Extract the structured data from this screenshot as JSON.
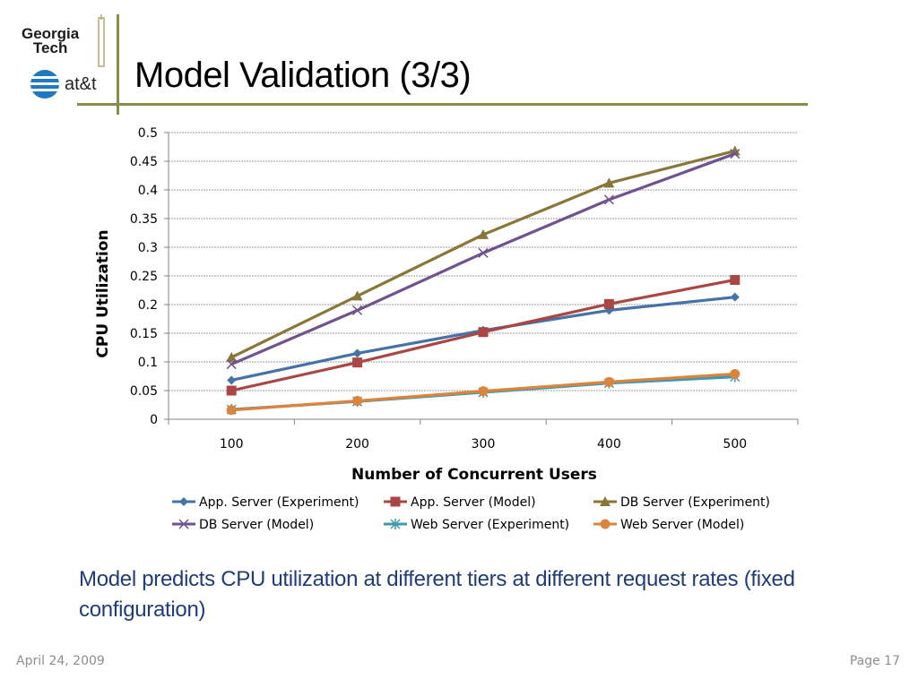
{
  "header": {
    "title": "Model Validation (3/3)",
    "logo_gt": "Georgia Tech",
    "logo_gt_line1": "Georgia",
    "logo_gt_line2": "Tech",
    "logo_att": "at&t"
  },
  "caption": "Model predicts CPU utilization at different tiers at different request rates (fixed configuration)",
  "footer": {
    "date": "April 24, 2009",
    "page": "Page 17"
  },
  "colors": {
    "rule": "#8a8a4a",
    "caption": "#1f3d7a"
  },
  "chart_data": {
    "type": "line",
    "xlabel": "Number of Concurrent Users",
    "ylabel": "CPU  Utilization",
    "categories": [
      "100",
      "200",
      "300",
      "400",
      "500"
    ],
    "ylim": [
      0,
      0.5
    ],
    "yticks": [
      "0",
      "0.05",
      "0.1",
      "0.15",
      "0.2",
      "0.25",
      "0.3",
      "0.35",
      "0.4",
      "0.45",
      "0.5"
    ],
    "grid": true,
    "legend_position": "bottom",
    "series": [
      {
        "name": "App. Server (Experiment)",
        "color": "#4572a7",
        "marker": "diamond",
        "values": [
          0.068,
          0.115,
          0.155,
          0.19,
          0.213
        ]
      },
      {
        "name": "App. Server (Model)",
        "color": "#aa4643",
        "marker": "square",
        "values": [
          0.05,
          0.099,
          0.152,
          0.201,
          0.243
        ]
      },
      {
        "name": "DB Server (Experiment)",
        "color": "#89773a",
        "marker": "triangle",
        "values": [
          0.108,
          0.215,
          0.322,
          0.412,
          0.468
        ]
      },
      {
        "name": "DB Server (Model)",
        "color": "#70528f",
        "marker": "x",
        "values": [
          0.096,
          0.19,
          0.29,
          0.383,
          0.463
        ]
      },
      {
        "name": "Web Server (Experiment)",
        "color": "#4198af",
        "marker": "star",
        "values": [
          0.017,
          0.031,
          0.047,
          0.063,
          0.074
        ]
      },
      {
        "name": "Web Server (Model)",
        "color": "#db843d",
        "marker": "circle",
        "values": [
          0.016,
          0.032,
          0.049,
          0.065,
          0.079
        ]
      }
    ]
  }
}
